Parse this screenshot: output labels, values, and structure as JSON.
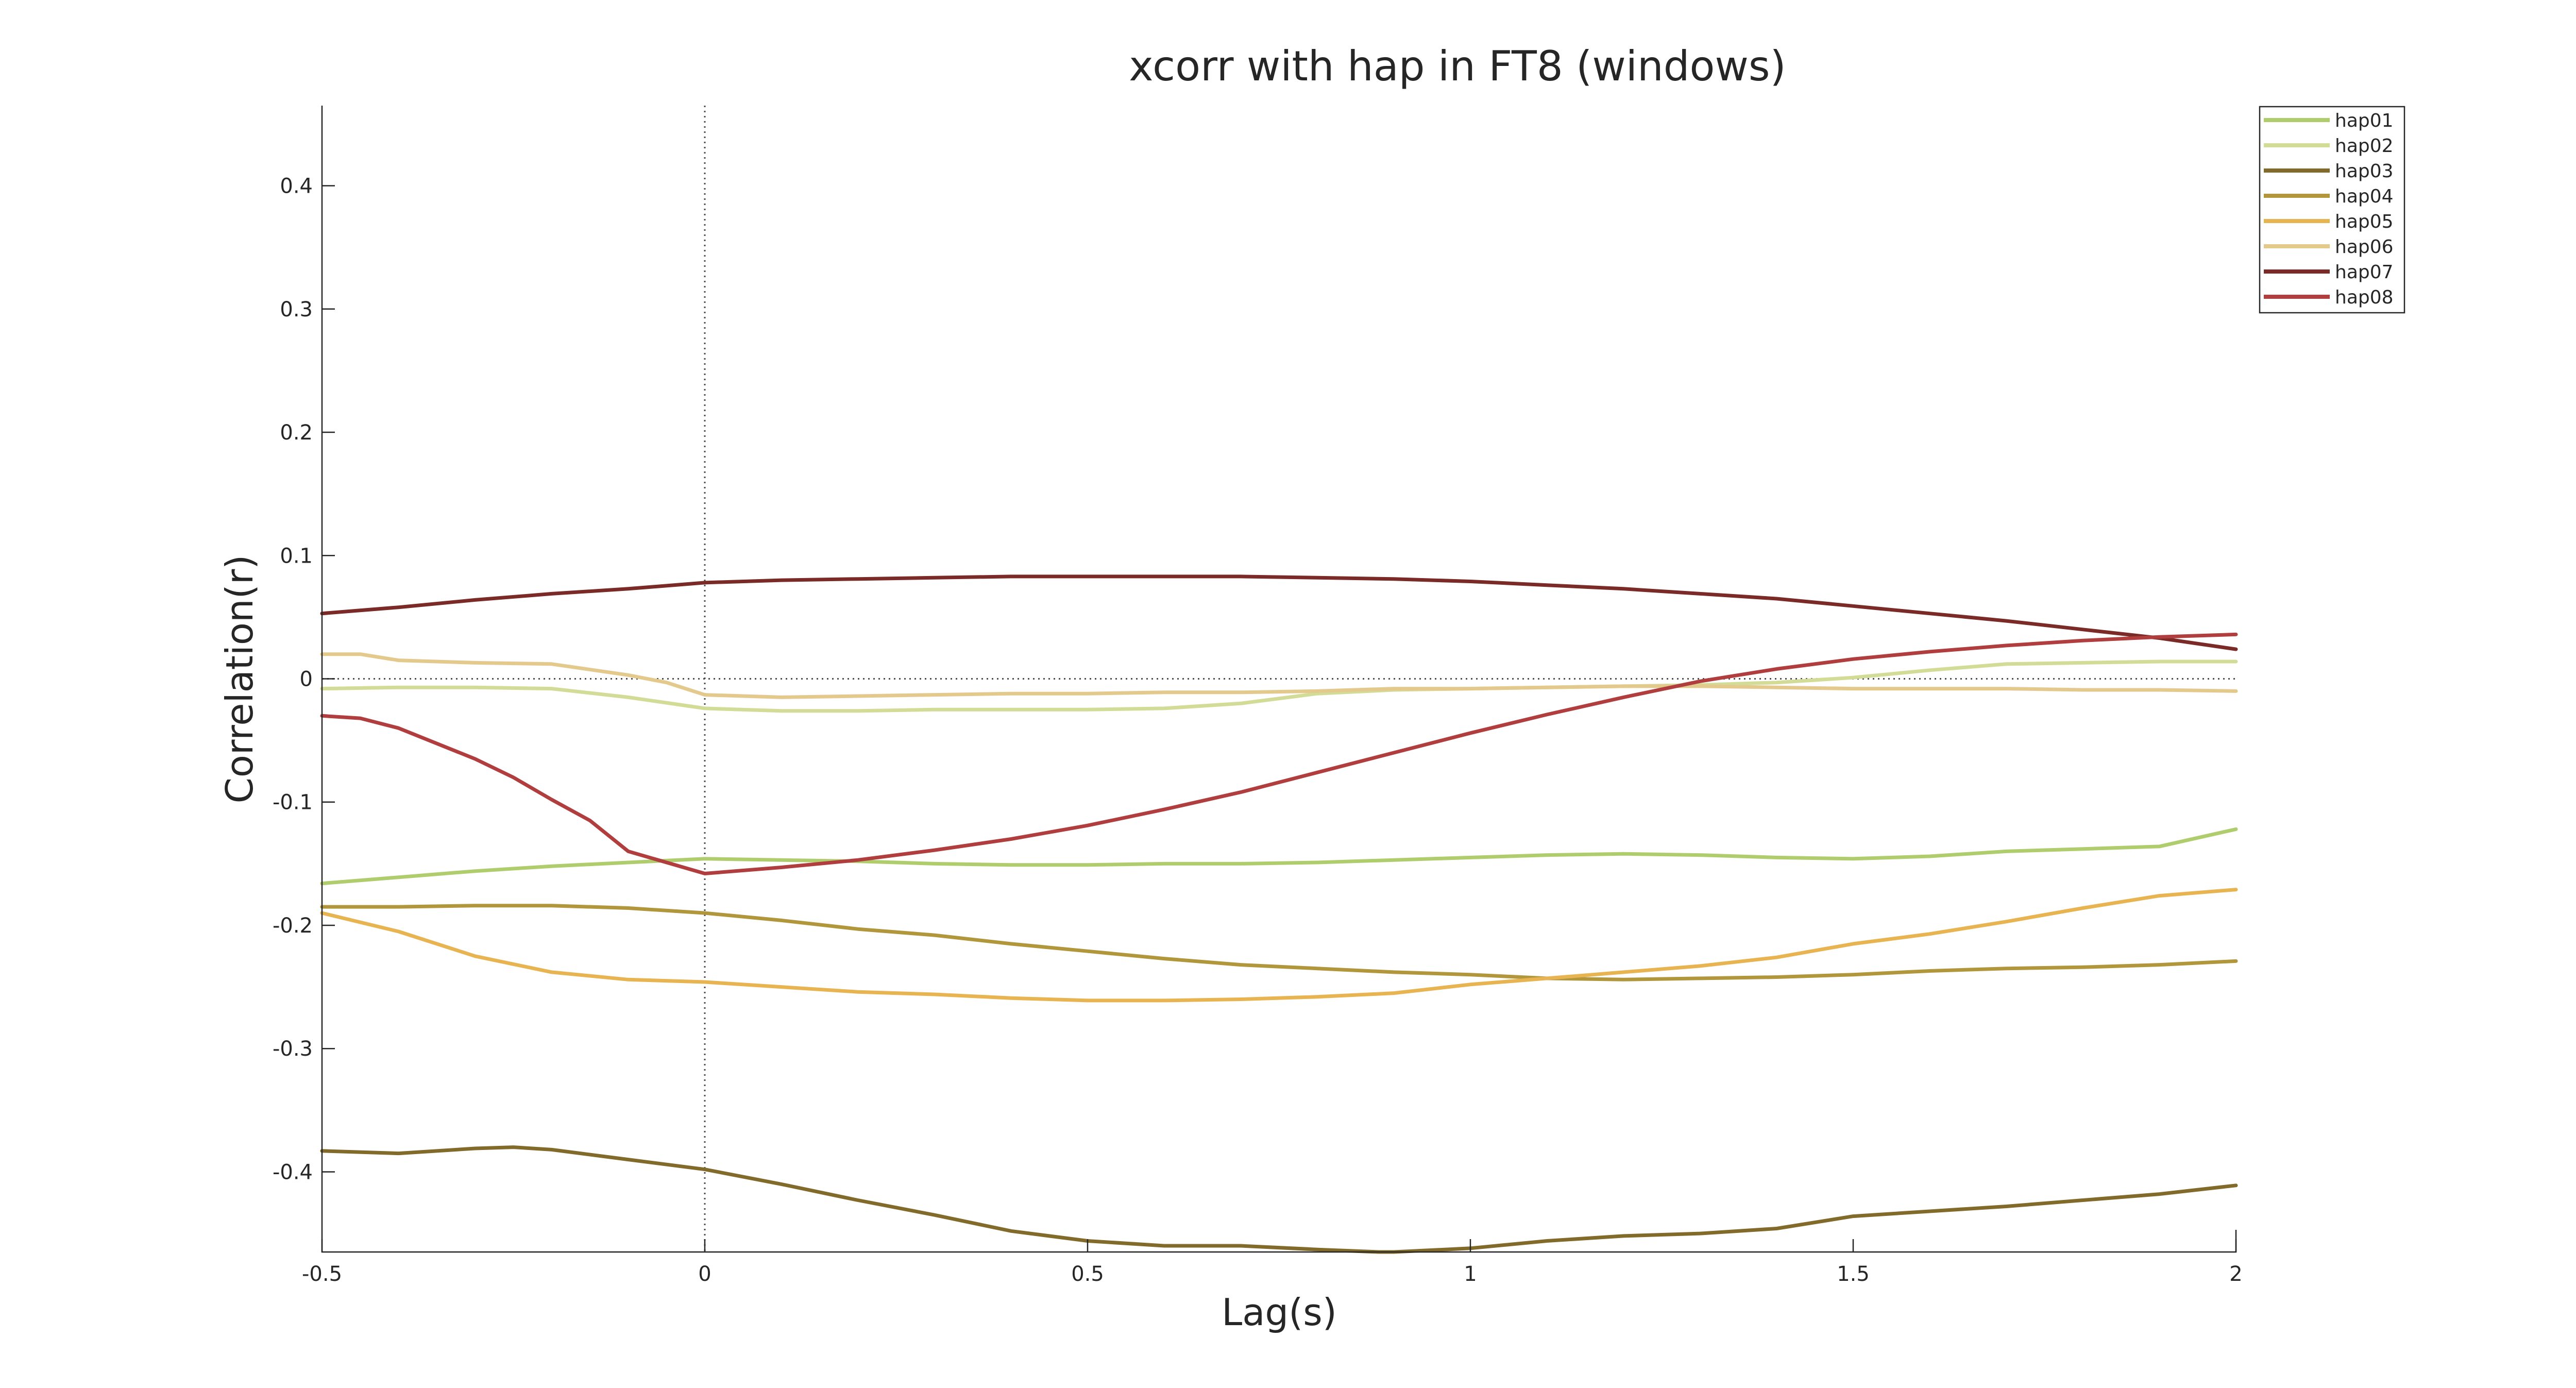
{
  "chart_data": {
    "type": "line",
    "title": "xcorr with hap in FT8 (windows)",
    "xlabel": "Lag(s)",
    "ylabel": "Correlation(r)",
    "xlim": [
      -0.5,
      2
    ],
    "ylim": [
      -0.465,
      0.465
    ],
    "xticks": [
      -0.5,
      0,
      0.5,
      1,
      1.5,
      2
    ],
    "xtick_labels": [
      "-0.5",
      "0",
      "0.5",
      "1",
      "1.5",
      "2"
    ],
    "yticks": [
      -0.4,
      -0.3,
      -0.2,
      -0.1,
      0,
      0.1,
      0.2,
      0.3,
      0.4
    ],
    "ytick_labels": [
      "-0.4",
      "-0.3",
      "-0.2",
      "-0.1",
      "0",
      "0.1",
      "0.2",
      "0.3",
      "0.4"
    ],
    "grid": false,
    "legend_position": "top-right",
    "reference_lines": {
      "x": 0,
      "y": 0
    },
    "series": [
      {
        "name": "hap01",
        "color": "#b0cd6e",
        "x": [
          -0.5,
          -0.4,
          -0.3,
          -0.2,
          -0.1,
          0,
          0.1,
          0.2,
          0.3,
          0.4,
          0.5,
          0.6,
          0.7,
          0.8,
          0.9,
          1.0,
          1.1,
          1.2,
          1.3,
          1.4,
          1.5,
          1.6,
          1.7,
          1.8,
          1.9,
          2.0
        ],
        "y": [
          -0.166,
          -0.161,
          -0.156,
          -0.152,
          -0.149,
          -0.146,
          -0.147,
          -0.148,
          -0.15,
          -0.151,
          -0.151,
          -0.15,
          -0.15,
          -0.149,
          -0.147,
          -0.145,
          -0.143,
          -0.142,
          -0.143,
          -0.145,
          -0.146,
          -0.144,
          -0.14,
          -0.138,
          -0.136,
          -0.122
        ]
      },
      {
        "name": "hap02",
        "color": "#d3dc97",
        "x": [
          -0.5,
          -0.4,
          -0.3,
          -0.2,
          -0.1,
          0,
          0.1,
          0.2,
          0.3,
          0.4,
          0.5,
          0.6,
          0.7,
          0.8,
          0.9,
          1.0,
          1.1,
          1.2,
          1.3,
          1.4,
          1.5,
          1.6,
          1.7,
          1.8,
          1.9,
          2.0
        ],
        "y": [
          -0.008,
          -0.007,
          -0.007,
          -0.008,
          -0.015,
          -0.024,
          -0.026,
          -0.026,
          -0.025,
          -0.025,
          -0.025,
          -0.024,
          -0.02,
          -0.012,
          -0.009,
          -0.008,
          -0.007,
          -0.006,
          -0.005,
          -0.003,
          0.001,
          0.007,
          0.012,
          0.013,
          0.014,
          0.014
        ]
      },
      {
        "name": "hap03",
        "color": "#826a2a",
        "x": [
          -0.5,
          -0.4,
          -0.3,
          -0.25,
          -0.2,
          -0.1,
          0,
          0.1,
          0.2,
          0.3,
          0.4,
          0.5,
          0.6,
          0.7,
          0.8,
          0.88,
          0.9,
          1.0,
          1.1,
          1.2,
          1.3,
          1.4,
          1.5,
          1.6,
          1.7,
          1.8,
          1.9,
          2.0
        ],
        "y": [
          -0.383,
          -0.385,
          -0.381,
          -0.38,
          -0.382,
          -0.39,
          -0.398,
          -0.41,
          -0.423,
          -0.435,
          -0.448,
          -0.456,
          -0.46,
          -0.46,
          -0.463,
          -0.465,
          -0.465,
          -0.462,
          -0.456,
          -0.452,
          -0.45,
          -0.446,
          -0.436,
          -0.432,
          -0.428,
          -0.423,
          -0.418,
          -0.411
        ]
      },
      {
        "name": "hap04",
        "color": "#b1963b",
        "x": [
          -0.5,
          -0.4,
          -0.3,
          -0.2,
          -0.1,
          0,
          0.1,
          0.2,
          0.3,
          0.4,
          0.5,
          0.6,
          0.7,
          0.8,
          0.9,
          1.0,
          1.1,
          1.2,
          1.3,
          1.4,
          1.5,
          1.6,
          1.7,
          1.8,
          1.9,
          2.0
        ],
        "y": [
          -0.185,
          -0.185,
          -0.184,
          -0.184,
          -0.186,
          -0.19,
          -0.196,
          -0.203,
          -0.208,
          -0.215,
          -0.221,
          -0.227,
          -0.232,
          -0.235,
          -0.238,
          -0.24,
          -0.243,
          -0.244,
          -0.243,
          -0.242,
          -0.24,
          -0.237,
          -0.235,
          -0.234,
          -0.232,
          -0.229
        ]
      },
      {
        "name": "hap05",
        "color": "#e8b451",
        "x": [
          -0.5,
          -0.4,
          -0.3,
          -0.2,
          -0.1,
          0,
          0.1,
          0.2,
          0.3,
          0.4,
          0.5,
          0.6,
          0.7,
          0.8,
          0.9,
          1.0,
          1.1,
          1.2,
          1.3,
          1.4,
          1.5,
          1.6,
          1.7,
          1.8,
          1.9,
          2.0
        ],
        "y": [
          -0.19,
          -0.205,
          -0.225,
          -0.238,
          -0.244,
          -0.246,
          -0.25,
          -0.254,
          -0.256,
          -0.259,
          -0.261,
          -0.261,
          -0.26,
          -0.258,
          -0.255,
          -0.248,
          -0.243,
          -0.238,
          -0.233,
          -0.226,
          -0.215,
          -0.207,
          -0.197,
          -0.186,
          -0.176,
          -0.171
        ]
      },
      {
        "name": "hap06",
        "color": "#e4c98c",
        "x": [
          -0.5,
          -0.45,
          -0.4,
          -0.3,
          -0.2,
          -0.1,
          -0.05,
          0,
          0.1,
          0.2,
          0.3,
          0.4,
          0.5,
          0.6,
          0.7,
          0.8,
          0.9,
          1.0,
          1.1,
          1.2,
          1.3,
          1.4,
          1.5,
          1.6,
          1.7,
          1.8,
          1.9,
          2.0
        ],
        "y": [
          0.02,
          0.02,
          0.015,
          0.013,
          0.012,
          0.003,
          -0.003,
          -0.013,
          -0.015,
          -0.014,
          -0.013,
          -0.012,
          -0.012,
          -0.011,
          -0.011,
          -0.01,
          -0.008,
          -0.008,
          -0.007,
          -0.006,
          -0.006,
          -0.007,
          -0.008,
          -0.008,
          -0.008,
          -0.009,
          -0.009,
          -0.01
        ]
      },
      {
        "name": "hap07",
        "color": "#7a2b27",
        "x": [
          -0.5,
          -0.4,
          -0.3,
          -0.2,
          -0.1,
          0,
          0.1,
          0.2,
          0.3,
          0.4,
          0.5,
          0.6,
          0.7,
          0.8,
          0.9,
          1.0,
          1.1,
          1.2,
          1.3,
          1.4,
          1.5,
          1.6,
          1.7,
          1.8,
          1.9,
          2.0
        ],
        "y": [
          0.053,
          0.058,
          0.064,
          0.069,
          0.073,
          0.078,
          0.08,
          0.081,
          0.082,
          0.083,
          0.083,
          0.083,
          0.083,
          0.082,
          0.081,
          0.079,
          0.076,
          0.073,
          0.069,
          0.065,
          0.059,
          0.053,
          0.047,
          0.04,
          0.033,
          0.024
        ]
      },
      {
        "name": "hap08",
        "color": "#b03e3e",
        "x": [
          -0.5,
          -0.45,
          -0.4,
          -0.3,
          -0.25,
          -0.2,
          -0.15,
          -0.1,
          0,
          0.1,
          0.2,
          0.3,
          0.4,
          0.5,
          0.6,
          0.7,
          0.8,
          0.9,
          1.0,
          1.1,
          1.2,
          1.3,
          1.4,
          1.5,
          1.6,
          1.7,
          1.8,
          1.9,
          2.0
        ],
        "y": [
          -0.03,
          -0.032,
          -0.04,
          -0.065,
          -0.08,
          -0.098,
          -0.115,
          -0.14,
          -0.158,
          -0.153,
          -0.147,
          -0.139,
          -0.13,
          -0.119,
          -0.106,
          -0.092,
          -0.076,
          -0.06,
          -0.044,
          -0.029,
          -0.015,
          -0.002,
          0.008,
          0.016,
          0.022,
          0.027,
          0.031,
          0.034,
          0.036
        ]
      }
    ]
  }
}
